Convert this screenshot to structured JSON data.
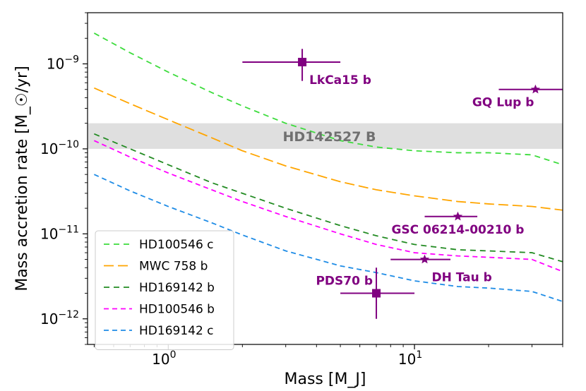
{
  "chart_data": {
    "type": "line",
    "xlabel": "Mass [M_J]",
    "ylabel": "Mass accretion rate [M_☉/yr]",
    "xscale": "log",
    "yscale": "log",
    "xlim": [
      0.47,
      40
    ],
    "ylim": [
      5e-13,
      4e-09
    ],
    "x_major_ticks": [
      {
        "value": 1,
        "label": "10",
        "exp": "0"
      },
      {
        "value": 10,
        "label": "10",
        "exp": "1"
      }
    ],
    "y_major_ticks": [
      {
        "value": 1e-12,
        "label": "10",
        "exp": "−12"
      },
      {
        "value": 1e-11,
        "label": "10",
        "exp": "−11"
      },
      {
        "value": 1e-10,
        "label": "10",
        "exp": "−10"
      },
      {
        "value": 1e-09,
        "label": "10",
        "exp": "−9"
      }
    ],
    "band": {
      "label": "HD142527 B",
      "ymin": 1e-10,
      "ymax": 2e-10,
      "color": "#d9d9d9"
    },
    "series": [
      {
        "name": "HD100546 c",
        "color": "#3ddc3d",
        "dash": "8,6",
        "x": [
          0.5,
          0.7,
          1,
          1.5,
          2,
          3,
          5,
          7,
          10,
          15,
          20,
          30,
          40
        ],
        "y": [
          2.3e-09,
          1.35e-09,
          8e-10,
          4.6e-10,
          3.2e-10,
          2e-10,
          1.25e-10,
          1.05e-10,
          9.5e-11,
          9e-11,
          9e-11,
          8.5e-11,
          6.5e-11
        ]
      },
      {
        "name": "MWC 758 b",
        "color": "#ffa500",
        "dash": "14,6",
        "x": [
          0.5,
          0.7,
          1,
          1.5,
          2,
          3,
          5,
          7,
          10,
          15,
          20,
          30,
          40
        ],
        "y": [
          5.2e-10,
          3.4e-10,
          2.2e-10,
          1.35e-10,
          9.5e-11,
          6.3e-11,
          4.1e-11,
          3.3e-11,
          2.8e-11,
          2.4e-11,
          2.25e-11,
          2.1e-11,
          1.9e-11
        ]
      },
      {
        "name": "HD169142 b",
        "color": "#228b22",
        "dash": "8,6",
        "x": [
          0.5,
          0.7,
          1,
          1.5,
          2,
          3,
          5,
          7,
          10,
          15,
          20,
          30,
          40
        ],
        "y": [
          1.5e-10,
          1e-10,
          6.5e-11,
          4e-11,
          3e-11,
          2e-11,
          1.25e-11,
          9.5e-12,
          7.5e-12,
          6.5e-12,
          6.3e-12,
          6e-12,
          4.7e-12
        ]
      },
      {
        "name": "HD100546 b",
        "color": "#ff00ff",
        "dash": "7,5",
        "x": [
          0.5,
          0.7,
          1,
          1.5,
          2,
          3,
          5,
          7,
          10,
          15,
          20,
          30,
          40
        ],
        "y": [
          1.25e-10,
          8e-11,
          5.2e-11,
          3.3e-11,
          2.4e-11,
          1.6e-11,
          1e-11,
          7.5e-12,
          6e-12,
          5.5e-12,
          5.3e-12,
          5e-12,
          3.6e-12
        ]
      },
      {
        "name": "HD169142 c",
        "color": "#1e8ce6",
        "dash": "7,5",
        "x": [
          0.5,
          0.7,
          1,
          1.5,
          2,
          3,
          5,
          7,
          10,
          15,
          20,
          30,
          40
        ],
        "y": [
          5e-11,
          3.2e-11,
          2.1e-11,
          1.35e-11,
          9.7e-12,
          6.3e-12,
          4.2e-12,
          3.5e-12,
          2.8e-12,
          2.4e-12,
          2.3e-12,
          2.1e-12,
          1.6e-12
        ]
      }
    ],
    "points": [
      {
        "name": "LkCa15 b",
        "x": 3.5,
        "y": 1.05e-09,
        "marker": "square",
        "xerr": [
          2.0,
          5.0
        ],
        "yerr": [
          6.3e-10,
          1.5e-09
        ],
        "label_pos": "below-right"
      },
      {
        "name": "GQ Lup b",
        "x": 31,
        "y": 5e-10,
        "marker": "star",
        "xerr": [
          22,
          40
        ],
        "yerr": null,
        "label_pos": "below-left"
      },
      {
        "name": "GSC 06214-00210 b",
        "x": 15,
        "y": 1.6e-11,
        "marker": "star",
        "xerr": [
          11,
          18
        ],
        "yerr": null,
        "label_pos": "below"
      },
      {
        "name": "DH Tau b",
        "x": 11,
        "y": 5e-12,
        "marker": "star",
        "xerr": [
          8,
          14
        ],
        "yerr": null,
        "label_pos": "below-right"
      },
      {
        "name": "PDS70 b",
        "x": 7,
        "y": 2e-12,
        "marker": "square",
        "xerr": [
          5,
          10
        ],
        "yerr": [
          1e-12,
          4e-12
        ],
        "label_pos": "above-left"
      }
    ],
    "point_color": "#800080",
    "legend": {
      "location": "lower-left"
    }
  }
}
